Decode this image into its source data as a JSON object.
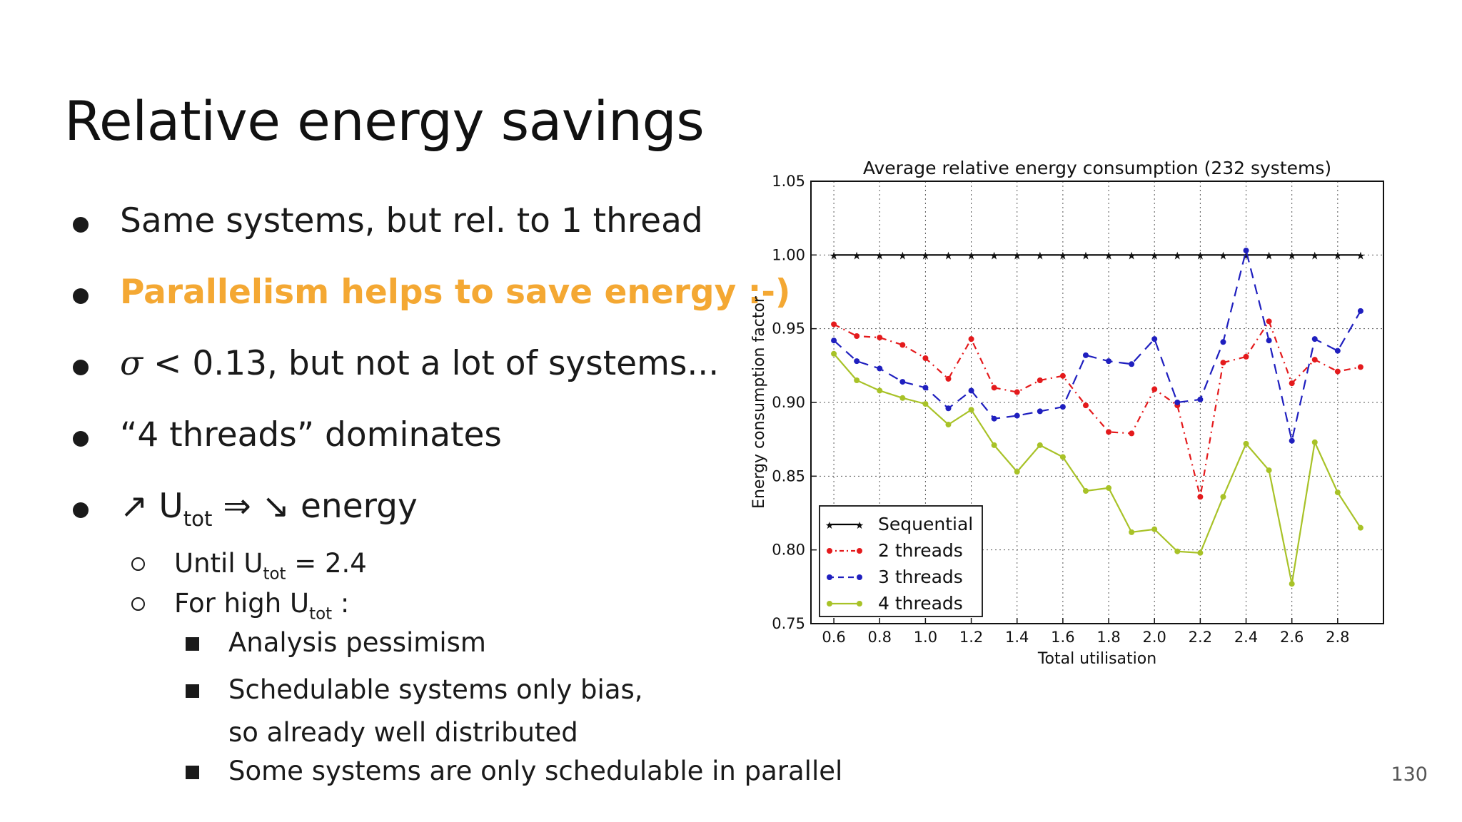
{
  "slide": {
    "title": "Relative energy savings",
    "page_number": "130"
  },
  "bullets": {
    "b1": "Same systems, but rel. to 1 thread",
    "b2": "Parallelism helps to save energy :-)",
    "b3_sigma": "σ",
    "b3_rest": " < 0.13,  but not a lot of systems...",
    "b4": "“4 threads” dominates",
    "b5_arrow_up": "↗",
    "b5_u": " U",
    "b5_sub": "tot",
    "b5_implies": " ⇒ ",
    "b5_arrow_down": "↘",
    "b5_energy": " energy",
    "s1_pre": "Until U",
    "s1_sub": "tot",
    "s1_post": " = 2.4",
    "s2_pre": "For high U",
    "s2_sub": "tot",
    "s2_post": " :",
    "t1": "Analysis pessimism",
    "t2_line1": "Schedulable systems only bias,",
    "t2_line2": "so already well distributed",
    "t3": "Some systems are only schedulable in parallel"
  },
  "colors": {
    "accent_orange": "#f4a833",
    "sequential": "#000000",
    "two_threads": "#e41a1c",
    "three_threads": "#1f1fbf",
    "four_threads": "#a8c227"
  },
  "chart_data": {
    "type": "line",
    "title": "Average relative energy consumption (232 systems)",
    "xlabel": "Total utilisation",
    "ylabel": "Energy consumption factor",
    "xlim": [
      0.5,
      3.0
    ],
    "ylim": [
      0.75,
      1.05
    ],
    "xticks": [
      0.6,
      0.8,
      1.0,
      1.2,
      1.4,
      1.6,
      1.8,
      2.0,
      2.2,
      2.4,
      2.6,
      2.8
    ],
    "xtick_labels": [
      "0.6",
      "0.8",
      "1.0",
      "1.2",
      "1.4",
      "1.6",
      "1.8",
      "2.0",
      "2.2",
      "2.4",
      "2.6",
      "2.8"
    ],
    "yticks": [
      0.75,
      0.8,
      0.85,
      0.9,
      0.95,
      1.0,
      1.05
    ],
    "ytick_labels": [
      "0.75",
      "0.80",
      "0.85",
      "0.90",
      "0.95",
      "1.00",
      "1.05"
    ],
    "grid": true,
    "legend_position": "lower-left",
    "x": [
      0.6,
      0.7,
      0.8,
      0.9,
      1.0,
      1.1,
      1.2,
      1.3,
      1.4,
      1.5,
      1.6,
      1.7,
      1.8,
      1.9,
      2.0,
      2.1,
      2.2,
      2.3,
      2.4,
      2.5,
      2.6,
      2.7,
      2.8,
      2.9
    ],
    "series": [
      {
        "name": "Sequential",
        "color": "#000000",
        "dash": "solid",
        "marker": "star",
        "values": [
          1.0,
          1.0,
          1.0,
          1.0,
          1.0,
          1.0,
          1.0,
          1.0,
          1.0,
          1.0,
          1.0,
          1.0,
          1.0,
          1.0,
          1.0,
          1.0,
          1.0,
          1.0,
          1.0,
          1.0,
          1.0,
          1.0,
          1.0,
          1.0
        ]
      },
      {
        "name": "2 threads",
        "color": "#e41a1c",
        "dash": "dashdot",
        "marker": "dot",
        "values": [
          0.953,
          0.945,
          0.944,
          0.939,
          0.93,
          0.916,
          0.943,
          0.91,
          0.907,
          0.915,
          0.918,
          0.898,
          0.88,
          0.879,
          0.909,
          0.898,
          0.836,
          0.927,
          0.931,
          0.955,
          0.913,
          0.929,
          0.921,
          0.924
        ]
      },
      {
        "name": "3 threads",
        "color": "#1f1fbf",
        "dash": "dashed",
        "marker": "dot",
        "values": [
          0.942,
          0.928,
          0.923,
          0.914,
          0.91,
          0.896,
          0.908,
          0.889,
          0.891,
          0.894,
          0.897,
          0.932,
          0.928,
          0.926,
          0.943,
          0.9,
          0.902,
          0.941,
          1.003,
          0.942,
          0.874,
          0.943,
          0.935,
          0.962
        ]
      },
      {
        "name": "4 threads",
        "color": "#a8c227",
        "dash": "solid",
        "marker": "dot",
        "values": [
          0.933,
          0.915,
          0.908,
          0.903,
          0.899,
          0.885,
          0.895,
          0.871,
          0.853,
          0.871,
          0.863,
          0.84,
          0.842,
          0.812,
          0.814,
          0.799,
          0.798,
          0.836,
          0.872,
          0.854,
          0.777,
          0.873,
          0.839,
          0.815
        ]
      }
    ]
  }
}
